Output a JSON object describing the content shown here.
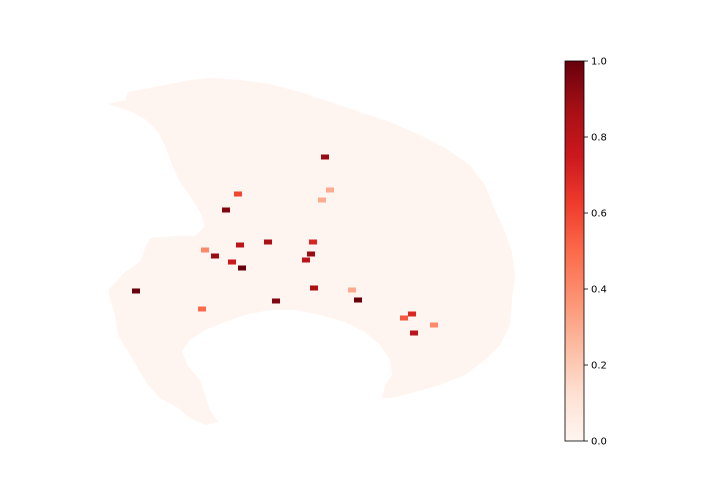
{
  "chart_data": {
    "type": "heatmap",
    "colormap": "Reds",
    "colorbar": {
      "vmin": 0.0,
      "vmax": 1.0,
      "ticks": [
        0.0,
        0.2,
        0.4,
        0.6,
        0.8,
        1.0
      ],
      "tick_labels": [
        "0.0",
        "0.2",
        "0.4",
        "0.6",
        "0.8",
        "1.0"
      ]
    },
    "axes_visible": false,
    "background_value": 0.0,
    "hotspots": [
      {
        "lon": 325,
        "lat": 157,
        "value": 0.9
      },
      {
        "lon": 238,
        "lat": 194,
        "value": 0.6
      },
      {
        "lon": 226,
        "lat": 210,
        "value": 0.95
      },
      {
        "lon": 240,
        "lat": 245,
        "value": 0.8
      },
      {
        "lon": 268,
        "lat": 242,
        "value": 0.85
      },
      {
        "lon": 215,
        "lat": 256,
        "value": 0.9
      },
      {
        "lon": 205,
        "lat": 250,
        "value": 0.4
      },
      {
        "lon": 242,
        "lat": 268,
        "value": 1.0
      },
      {
        "lon": 232,
        "lat": 262,
        "value": 0.75
      },
      {
        "lon": 313,
        "lat": 242,
        "value": 0.7
      },
      {
        "lon": 311,
        "lat": 254,
        "value": 0.9
      },
      {
        "lon": 306,
        "lat": 260,
        "value": 0.8
      },
      {
        "lon": 330,
        "lat": 190,
        "value": 0.3
      },
      {
        "lon": 322,
        "lat": 200,
        "value": 0.3
      },
      {
        "lon": 136,
        "lat": 291,
        "value": 1.0
      },
      {
        "lon": 276,
        "lat": 301,
        "value": 0.95
      },
      {
        "lon": 314,
        "lat": 288,
        "value": 0.85
      },
      {
        "lon": 358,
        "lat": 300,
        "value": 1.0
      },
      {
        "lon": 352,
        "lat": 290,
        "value": 0.3
      },
      {
        "lon": 404,
        "lat": 318,
        "value": 0.55
      },
      {
        "lon": 412,
        "lat": 314,
        "value": 0.7
      },
      {
        "lon": 414,
        "lat": 333,
        "value": 0.8
      },
      {
        "lon": 434,
        "lat": 325,
        "value": 0.4
      },
      {
        "lon": 202,
        "lat": 309,
        "value": 0.5
      }
    ]
  },
  "colors": {
    "background_fill": "#fff5f0",
    "low": "#fff5f0",
    "high": "#67000d"
  }
}
